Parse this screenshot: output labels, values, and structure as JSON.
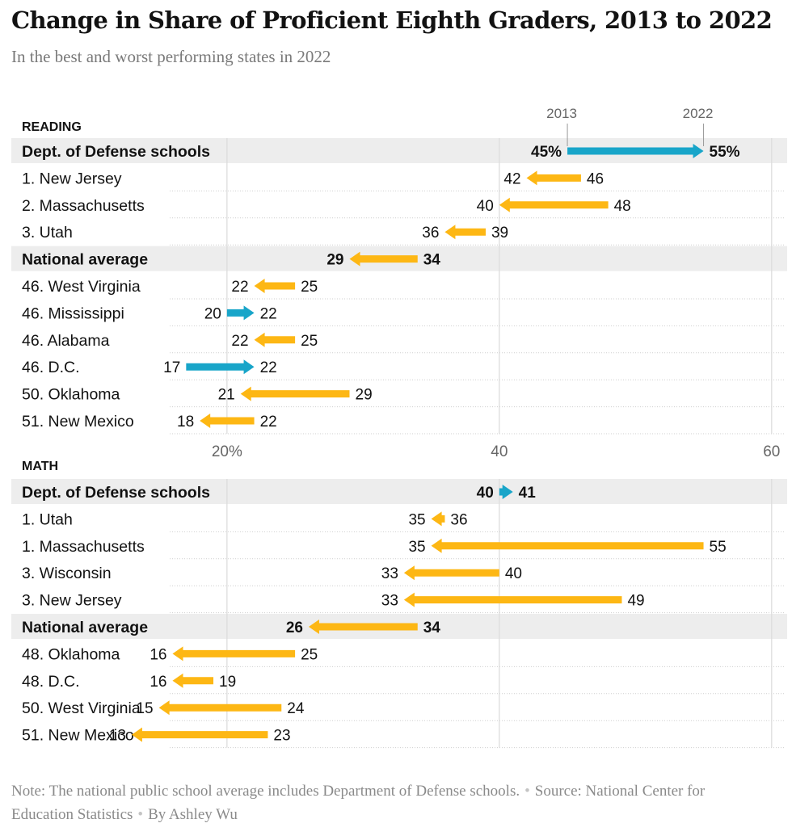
{
  "title": "Change in Share of Proficient Eighth Graders, 2013 to 2022",
  "subtitle": "In the best and worst performing states in 2022",
  "footer": {
    "note": "Note: The national public school average includes Department of Defense schools.",
    "source": "Source: National Center for Education Statistics",
    "byline": "By Ashley Wu"
  },
  "colors": {
    "decline": "#fdb714",
    "increase": "#18a5c9",
    "highlight_row": "#ededed",
    "gridline": "#dddddd"
  },
  "chart_data": [
    {
      "type": "arrow-dot",
      "title": "READING",
      "legend_labels": [
        "2013",
        "2022"
      ],
      "x_ticks": [
        20,
        40,
        60
      ],
      "x_tick_labels": [
        "20%",
        "40",
        "60"
      ],
      "xlim": [
        15.2,
        61.2
      ],
      "rows": [
        {
          "label": "Dept. of Defense schools",
          "y2013": 45,
          "y2022": 55,
          "label_2013": "45%",
          "label_2022": "55%",
          "bold": true
        },
        {
          "label": "1. New Jersey",
          "y2013": 46,
          "y2022": 42
        },
        {
          "label": "2. Massachusetts",
          "y2013": 48,
          "y2022": 40
        },
        {
          "label": "3. Utah",
          "y2013": 39,
          "y2022": 36
        },
        {
          "label": "National average",
          "y2013": 34,
          "y2022": 29,
          "bold": true
        },
        {
          "label": "46. West Virginia",
          "y2013": 25,
          "y2022": 22
        },
        {
          "label": "46. Mississippi",
          "y2013": 20,
          "y2022": 22
        },
        {
          "label": "46. Alabama",
          "y2013": 25,
          "y2022": 22
        },
        {
          "label": "46. D.C.",
          "y2013": 17,
          "y2022": 22
        },
        {
          "label": "50. Oklahoma",
          "y2013": 29,
          "y2022": 21
        },
        {
          "label": "51. New Mexico",
          "y2013": 22,
          "y2022": 18
        }
      ]
    },
    {
      "type": "arrow-dot",
      "title": "MATH",
      "x_ticks": [
        20,
        40,
        60
      ],
      "xlim": [
        15.2,
        61.2
      ],
      "rows": [
        {
          "label": "Dept. of Defense schools",
          "y2013": 40,
          "y2022": 41,
          "bold": true
        },
        {
          "label": "1. Utah",
          "y2013": 36,
          "y2022": 35
        },
        {
          "label": "1. Massachusetts",
          "y2013": 55,
          "y2022": 35
        },
        {
          "label": "3. Wisconsin",
          "y2013": 40,
          "y2022": 33
        },
        {
          "label": "3. New Jersey",
          "y2013": 49,
          "y2022": 33
        },
        {
          "label": "National average",
          "y2013": 34,
          "y2022": 26,
          "bold": true
        },
        {
          "label": "48. Oklahoma",
          "y2013": 25,
          "y2022": 16
        },
        {
          "label": "48. D.C.",
          "y2013": 19,
          "y2022": 16
        },
        {
          "label": "50. West Virginia",
          "y2013": 24,
          "y2022": 15
        },
        {
          "label": "51. New Mexico",
          "y2013": 23,
          "y2022": 13
        }
      ]
    }
  ]
}
